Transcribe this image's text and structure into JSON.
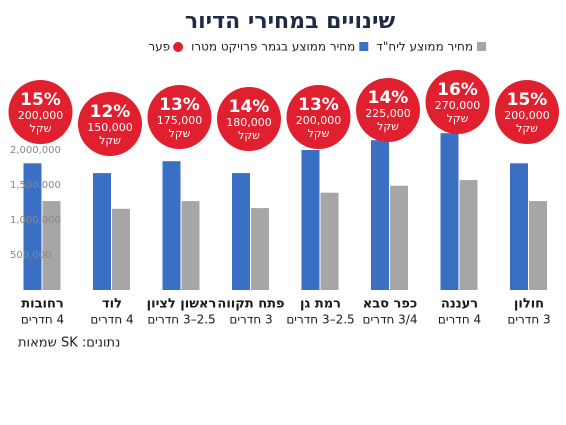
{
  "chart_data": {
    "type": "bar",
    "title": "שינויים במחירי הדיור",
    "categories": [
      "חולון",
      "רעננה",
      "כפר סבא",
      "רמת גן",
      "פתח תקווה",
      "ראשון לציון",
      "לוד",
      "רחובות"
    ],
    "category_sublabels": [
      "3 חדרים",
      "4 חדרים",
      "3/4 חדרים",
      "2.5–3 חדרים",
      "3 חדרים",
      "2.5–3 חדרים",
      "4 חדרים",
      "4 חדרים"
    ],
    "series": [
      {
        "name": "מחיר ממוצע בגמר פרויקט מטרו",
        "color": "#3a6fc4",
        "values": [
          1810000,
          2240000,
          2140000,
          2000000,
          1670000,
          1840000,
          1670000,
          1810000
        ]
      },
      {
        "name": "מחיר ממוצע ליח\"ד",
        "color": "#a6a6a6",
        "values": [
          1270000,
          1570000,
          1490000,
          1390000,
          1170000,
          1270000,
          1160000,
          1270000
        ]
      }
    ],
    "gap": {
      "name": "פער",
      "color": "#e0202f",
      "percent": {
        "values": [
          15,
          16,
          14,
          13,
          14,
          13,
          12,
          15
        ],
        "value_labels": [
          "15%",
          "16%",
          "14%",
          "13%",
          "14%",
          "13%",
          "12%",
          "15%"
        ]
      },
      "amount": {
        "values": [
          200000,
          270000,
          225000,
          200000,
          180000,
          175000,
          150000,
          200000
        ],
        "value_labels": [
          "200,000",
          "270,000",
          "225,000",
          "200,000",
          "180,000",
          "175,000",
          "150,000",
          "200,000"
        ]
      },
      "unit": "שקל"
    },
    "ylim": [
      0,
      2400000
    ],
    "yticks": [
      {
        "value": 500000,
        "label": "500,000"
      },
      {
        "value": 1000000,
        "label": "1,000,000"
      },
      {
        "value": 1500000,
        "label": "1,500,000"
      },
      {
        "value": 2000000,
        "label": "2,000,000"
      }
    ],
    "source": "נתונים: SK שמאות"
  }
}
